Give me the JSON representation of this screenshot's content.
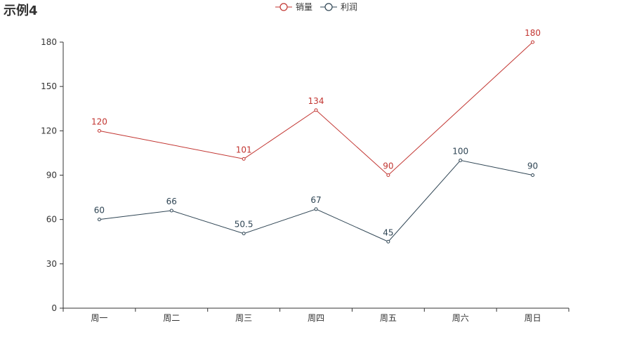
{
  "chart_data": {
    "type": "line",
    "title": "示例4",
    "categories": [
      "周一",
      "周二",
      "周三",
      "周四",
      "周五",
      "周六",
      "周日"
    ],
    "ylim": [
      0,
      180
    ],
    "yticks": [
      0,
      30,
      60,
      90,
      120,
      150,
      180
    ],
    "legend_position": "top-center",
    "grid": false,
    "series": [
      {
        "name": "销量",
        "color": "#c23531",
        "values": [
          120,
          null,
          101,
          134,
          90,
          null,
          180
        ],
        "labels": [
          "120",
          "",
          "101",
          "134",
          "90",
          "",
          "180"
        ]
      },
      {
        "name": "利润",
        "color": "#2f4554",
        "values": [
          60,
          66,
          50.5,
          67,
          45,
          100,
          90
        ],
        "labels": [
          "60",
          "66",
          "50.5",
          "67",
          "45",
          "100",
          "90"
        ]
      }
    ]
  }
}
